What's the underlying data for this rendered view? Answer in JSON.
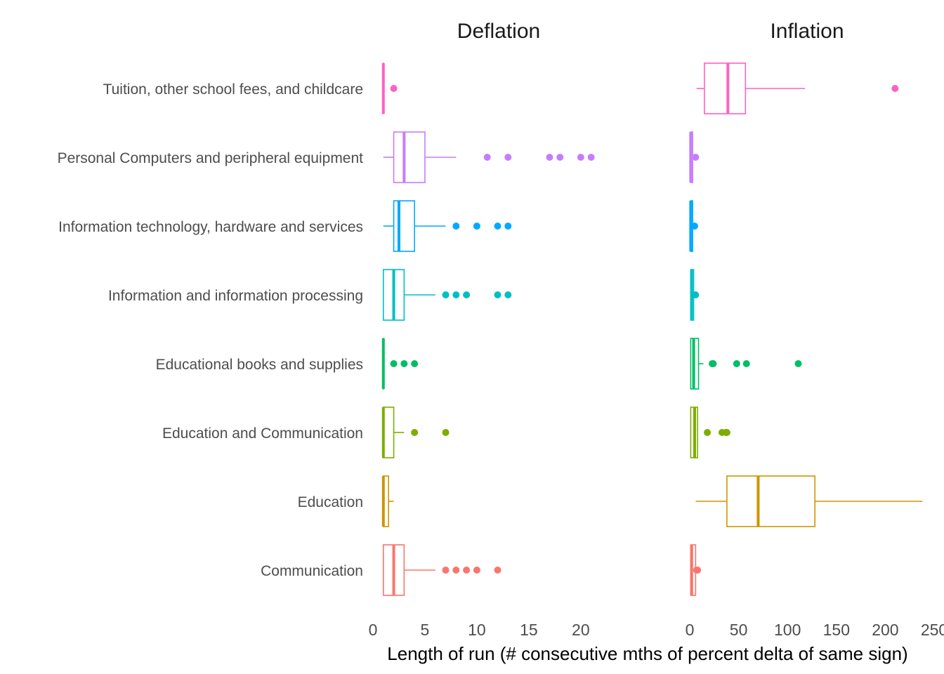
{
  "chart_data": {
    "type": "boxplot",
    "xlabel": "Length of run (# consecutive mths of percent delta of same sign)",
    "categories": [
      "Tuition, other school fees, and childcare",
      "Personal Computers and peripheral equipment",
      "Information technology, hardware and services",
      "Information and information processing",
      "Educational books and supplies",
      "Education and Communication",
      "Education",
      "Communication"
    ],
    "colors": {
      "Tuition, other school fees, and childcare": "#FF61C3",
      "Personal Computers and peripheral equipment": "#C77CFF",
      "Information technology, hardware and services": "#00A9FF",
      "Information and information processing": "#00BFC4",
      "Educational books and supplies": "#00BE67",
      "Education and Communication": "#7CAE00",
      "Education": "#CD9600",
      "Communication": "#F8766D"
    },
    "panels": [
      {
        "title": "Deflation",
        "xlim": [
          0,
          24
        ],
        "ticks": [
          0,
          5,
          10,
          15,
          20
        ],
        "boxes": {
          "Tuition, other school fees, and childcare": {
            "min": 1,
            "q1": 1,
            "median": 1,
            "q3": 1,
            "max": 1,
            "outliers": [
              2
            ]
          },
          "Personal Computers and peripheral equipment": {
            "min": 1,
            "q1": 2,
            "median": 3,
            "q3": 5,
            "max": 8,
            "outliers": [
              11,
              13,
              17,
              18,
              20,
              21
            ]
          },
          "Information technology, hardware and services": {
            "min": 1,
            "q1": 2,
            "median": 2.5,
            "q3": 4,
            "max": 7,
            "outliers": [
              8,
              10,
              12,
              13
            ]
          },
          "Information and information processing": {
            "min": 1,
            "q1": 1,
            "median": 2,
            "q3": 3,
            "max": 6,
            "outliers": [
              7,
              8,
              9,
              12,
              13
            ]
          },
          "Educational books and supplies": {
            "min": 1,
            "q1": 1,
            "median": 1,
            "q3": 1,
            "max": 1,
            "outliers": [
              2,
              3,
              4
            ]
          },
          "Education and Communication": {
            "min": 1,
            "q1": 1,
            "median": 1,
            "q3": 2,
            "max": 3,
            "outliers": [
              4,
              7
            ]
          },
          "Education": {
            "min": 1,
            "q1": 1,
            "median": 1,
            "q3": 1.5,
            "max": 2,
            "outliers": []
          },
          "Communication": {
            "min": 1,
            "q1": 1,
            "median": 2,
            "q3": 3,
            "max": 6,
            "outliers": [
              7,
              8,
              9,
              10,
              12
            ]
          }
        }
      },
      {
        "title": "Inflation",
        "xlim": [
          0,
          250
        ],
        "ticks": [
          0,
          50,
          100,
          150,
          200,
          250
        ],
        "boxes": {
          "Tuition, other school fees, and childcare": {
            "min": 7,
            "q1": 15,
            "median": 39,
            "q3": 57,
            "max": 118,
            "outliers": [
              210
            ]
          },
          "Personal Computers and peripheral equipment": {
            "min": 1,
            "q1": 1,
            "median": 1,
            "q3": 3,
            "max": 3,
            "outliers": [
              6
            ]
          },
          "Information technology, hardware and services": {
            "min": 1,
            "q1": 1,
            "median": 1,
            "q3": 3,
            "max": 3,
            "outliers": [
              5
            ]
          },
          "Information and information processing": {
            "min": 1,
            "q1": 1,
            "median": 2,
            "q3": 4,
            "max": 4,
            "outliers": [
              6
            ]
          },
          "Educational books and supplies": {
            "min": 1,
            "q1": 1,
            "median": 4,
            "q3": 9,
            "max": 14,
            "outliers": [
              23,
              24,
              48,
              58,
              111
            ]
          },
          "Education and Communication": {
            "min": 1,
            "q1": 1,
            "median": 5,
            "q3": 8,
            "max": 8,
            "outliers": [
              18,
              33,
              37,
              38
            ]
          },
          "Education": {
            "min": 6,
            "q1": 38,
            "median": 70,
            "q3": 128,
            "max": 238,
            "outliers": []
          },
          "Communication": {
            "min": 1,
            "q1": 1,
            "median": 2,
            "q3": 6,
            "max": 6,
            "outliers": [
              7,
              8
            ]
          }
        }
      }
    ]
  }
}
